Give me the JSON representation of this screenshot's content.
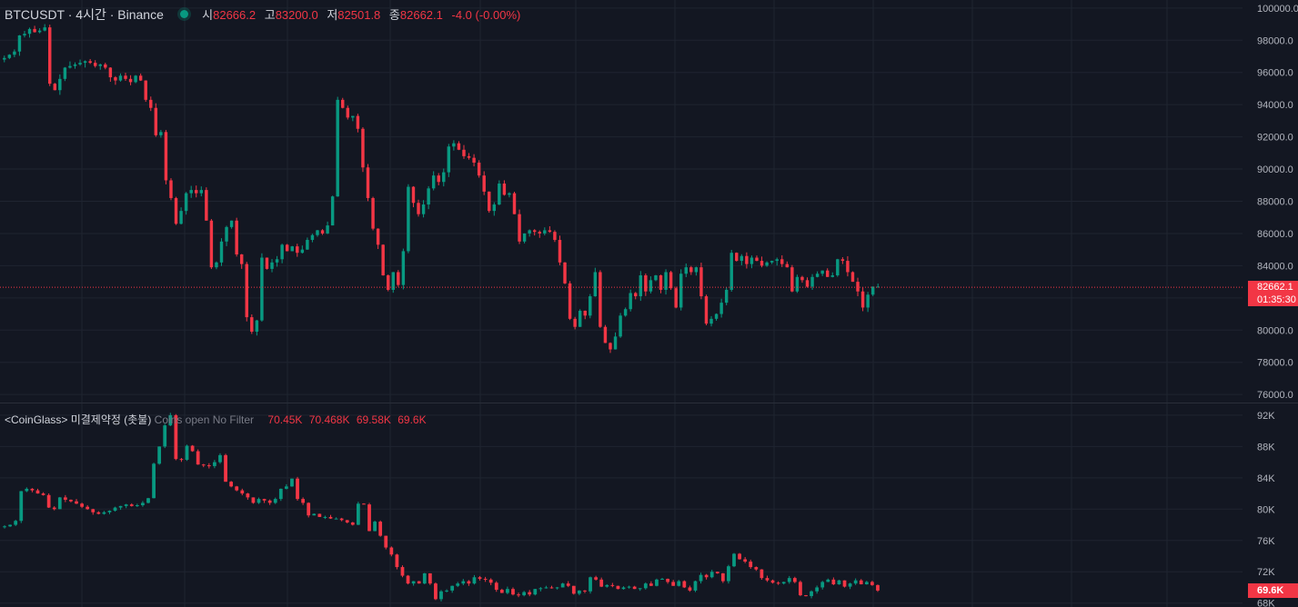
{
  "header": {
    "symbol": "BTCUSDT · 4시간 · Binance",
    "open_label": "시",
    "open": "82666.2",
    "high_label": "고",
    "high": "83200.0",
    "low_label": "저",
    "low": "82501.8",
    "close_label": "종",
    "close": "82662.1",
    "change": "-4.0 (-0.00%)"
  },
  "indicator": {
    "name": "<CoinGlass> 미결제약정 (촛불)",
    "params": "Coins open No Filter",
    "o": "70.45K",
    "h": "70.468K",
    "l": "69.58K",
    "c": "69.6K"
  },
  "price_tag": {
    "price": "82662.1",
    "countdown": "01:35:30"
  },
  "oi_tag": "69.6K",
  "colors": {
    "bg": "#131722",
    "up": "#089981",
    "down": "#f23645",
    "grid": "#1f2430",
    "text": "#d1d4dc"
  },
  "chart_data": [
    {
      "type": "candlestick",
      "title": "BTCUSDT · 4시간 · Binance",
      "ylim": [
        75500,
        100500
      ],
      "y_ticks": [
        "100000.0",
        "98000.0",
        "96000.0",
        "94000.0",
        "92000.0",
        "90000.0",
        "88000.0",
        "86000.0",
        "84000.0",
        "82000.0",
        "80000.0",
        "78000.0",
        "76000.0"
      ],
      "y_tick_values": [
        100000,
        98000,
        96000,
        94000,
        92000,
        90000,
        88000,
        86000,
        84000,
        82000,
        80000,
        78000,
        76000
      ],
      "last_price": 82662.1,
      "closes": [
        96900,
        97100,
        97300,
        98300,
        98400,
        98700,
        98500,
        98600,
        98800,
        95300,
        94900,
        95600,
        96300,
        96400,
        96500,
        96600,
        96700,
        96600,
        96400,
        96500,
        96300,
        95700,
        95500,
        95800,
        95600,
        95400,
        95800,
        95500,
        94300,
        93800,
        92100,
        92300,
        89300,
        88200,
        86600,
        87400,
        88500,
        88700,
        88500,
        88700,
        86800,
        83900,
        84200,
        85500,
        86400,
        86800,
        84700,
        84100,
        80800,
        79900,
        80600,
        84500,
        83800,
        84200,
        84400,
        85300,
        84900,
        85200,
        84800,
        85000,
        85600,
        85900,
        86200,
        86000,
        86500,
        88300,
        94300,
        93800,
        93200,
        93300,
        92500,
        90100,
        88200,
        86300,
        85300,
        83400,
        82500,
        83600,
        82800,
        84900,
        88900,
        87900,
        87200,
        87800,
        88800,
        89600,
        89200,
        89800,
        91400,
        91600,
        91200,
        90800,
        90700,
        90400,
        89600,
        88600,
        87400,
        87800,
        89100,
        88400,
        88500,
        87200,
        85500,
        86000,
        86200,
        86100,
        86000,
        86200,
        86100,
        85600,
        84200,
        82900,
        80700,
        80200,
        81200,
        80900,
        82100,
        83600,
        80200,
        79200,
        78800,
        79600,
        80900,
        81300,
        82300,
        82100,
        83400,
        82400,
        83100,
        83400,
        82500,
        83600,
        82600,
        81400,
        83500,
        83900,
        83600,
        83900,
        82100,
        80400,
        80700,
        81000,
        81700,
        82500,
        84800,
        84300,
        84600,
        84100,
        84500,
        84300,
        84000,
        84200,
        84300,
        84400,
        84100,
        83900,
        82400,
        83300,
        83100,
        82700,
        83300,
        83500,
        83700,
        83300,
        83400,
        84400,
        84300,
        83600,
        83000,
        82400,
        81400,
        82200,
        82700,
        82700
      ]
    },
    {
      "type": "candlestick",
      "title": "<CoinGlass> 미결제약정 (촛불)",
      "ylim": [
        67500,
        93500
      ],
      "y_ticks": [
        "92K",
        "88K",
        "84K",
        "80K",
        "76K",
        "72K",
        "68K"
      ],
      "y_tick_values": [
        92000,
        88000,
        84000,
        80000,
        76000,
        72000,
        68000
      ],
      "last_value": 69600,
      "closes": [
        77800,
        78000,
        78500,
        82300,
        82600,
        82400,
        82000,
        81800,
        80200,
        80000,
        81500,
        81200,
        81000,
        80700,
        80300,
        80000,
        79600,
        79400,
        79600,
        79800,
        80200,
        80400,
        80600,
        80400,
        80500,
        80800,
        81400,
        85800,
        88000,
        90700,
        92000,
        86400,
        86300,
        88100,
        87400,
        85700,
        85600,
        85500,
        86000,
        86900,
        83500,
        82900,
        82400,
        82000,
        81500,
        80800,
        81300,
        81100,
        80800,
        81300,
        82600,
        82900,
        83900,
        81300,
        80800,
        79200,
        79400,
        79000,
        79000,
        78800,
        78800,
        78600,
        78300,
        78000,
        80700,
        80600,
        77200,
        78400,
        76600,
        75100,
        74200,
        72600,
        71500,
        70500,
        70800,
        70500,
        71800,
        70500,
        68500,
        69500,
        69600,
        70200,
        70500,
        70800,
        70500,
        71300,
        71100,
        71000,
        70600,
        69700,
        69300,
        69800,
        69100,
        69000,
        69400,
        69100,
        69800,
        69900,
        70000,
        69900,
        70000,
        70500,
        70200,
        69200,
        69600,
        69500,
        71300,
        71000,
        70100,
        70300,
        70200,
        69800,
        70000,
        70100,
        69800,
        69900,
        70500,
        70200,
        71000,
        71100,
        70700,
        70200,
        70800,
        70000,
        69600,
        70800,
        71600,
        71300,
        72000,
        71800,
        70800,
        72700,
        74300,
        73600,
        73300,
        72600,
        72300,
        71200,
        70900,
        70600,
        70500,
        70700,
        71200,
        70700,
        69000,
        68900,
        69500,
        70000,
        70700,
        71000,
        70400,
        70900,
        70100,
        70500,
        70900,
        70400,
        70700,
        70300,
        69600
      ]
    }
  ]
}
